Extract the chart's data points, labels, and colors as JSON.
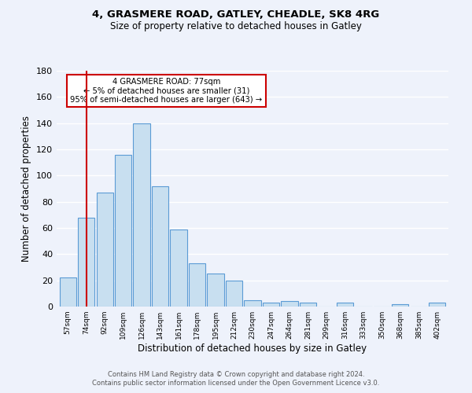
{
  "title": "4, GRASMERE ROAD, GATLEY, CHEADLE, SK8 4RG",
  "subtitle": "Size of property relative to detached houses in Gatley",
  "xlabel": "Distribution of detached houses by size in Gatley",
  "ylabel": "Number of detached properties",
  "bar_labels": [
    "57sqm",
    "74sqm",
    "92sqm",
    "109sqm",
    "126sqm",
    "143sqm",
    "161sqm",
    "178sqm",
    "195sqm",
    "212sqm",
    "230sqm",
    "247sqm",
    "264sqm",
    "281sqm",
    "299sqm",
    "316sqm",
    "333sqm",
    "350sqm",
    "368sqm",
    "385sqm",
    "402sqm"
  ],
  "bar_values": [
    22,
    68,
    87,
    116,
    140,
    92,
    59,
    33,
    25,
    20,
    5,
    3,
    4,
    3,
    0,
    3,
    0,
    0,
    2,
    0,
    3
  ],
  "bar_color": "#c8dff0",
  "bar_edge_color": "#5b9bd5",
  "vline_x": 1,
  "vline_color": "#cc0000",
  "annotation_box_text": "4 GRASMERE ROAD: 77sqm\n← 5% of detached houses are smaller (31)\n95% of semi-detached houses are larger (643) →",
  "ylim": [
    0,
    180
  ],
  "yticks": [
    0,
    20,
    40,
    60,
    80,
    100,
    120,
    140,
    160,
    180
  ],
  "footer1": "Contains HM Land Registry data © Crown copyright and database right 2024.",
  "footer2": "Contains public sector information licensed under the Open Government Licence v3.0.",
  "bg_color": "#eef2fb",
  "grid_color": "#ffffff"
}
